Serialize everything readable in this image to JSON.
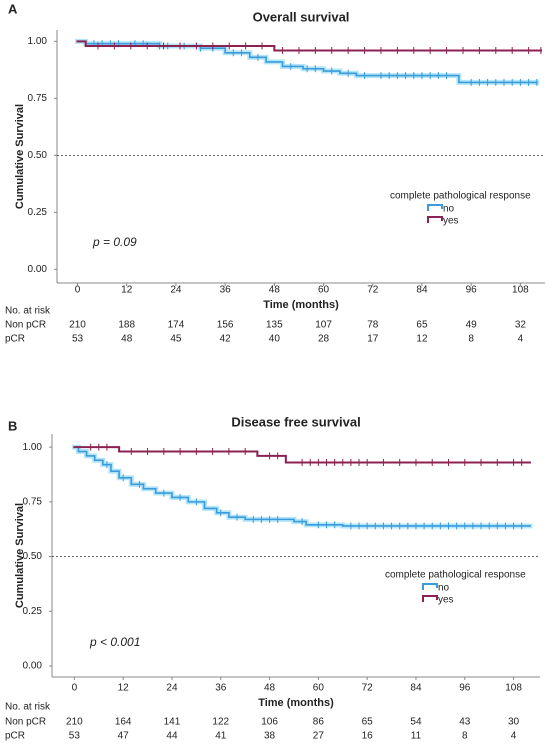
{
  "chart_data": [
    {
      "type": "line",
      "panel": "A",
      "title": "Overall survival",
      "xlabel": "Time (months)",
      "ylabel": "Cumulative Survival",
      "xlim": [
        -5,
        114
      ],
      "ylim": [
        -0.06,
        1.05
      ],
      "xticks": [
        0,
        12,
        24,
        36,
        48,
        60,
        72,
        84,
        96,
        108
      ],
      "yticks": [
        {
          "value": 0,
          "label": "0.00"
        },
        {
          "value": 0.25,
          "label": "0.25"
        },
        {
          "value": 0.5,
          "label": "0.50"
        },
        {
          "value": 0.75,
          "label": "0.75"
        },
        {
          "value": 1,
          "label": "1.00"
        }
      ],
      "hline": 0.5,
      "annotation": "p = 0.09",
      "legend_title": "complete pathological response",
      "series": [
        {
          "name": "no",
          "color": "#3b9bdc",
          "x": [
            0,
            2,
            20,
            30,
            36,
            42,
            46,
            50,
            55,
            60,
            64,
            68,
            93,
            112
          ],
          "values": [
            1.0,
            0.99,
            0.98,
            0.97,
            0.95,
            0.93,
            0.91,
            0.89,
            0.88,
            0.87,
            0.86,
            0.85,
            0.82,
            0.82
          ],
          "censor_x": [
            4,
            6,
            8,
            10,
            14,
            16,
            20,
            22,
            26,
            30,
            33,
            38,
            40,
            44,
            52,
            56,
            58,
            62,
            66,
            70,
            74,
            76,
            78,
            80,
            82,
            84,
            86,
            88,
            90,
            96,
            98,
            100,
            102,
            104,
            106,
            108,
            110,
            112
          ]
        },
        {
          "name": "yes",
          "color": "#8b2252",
          "x": [
            0,
            2,
            48,
            113
          ],
          "values": [
            1.0,
            0.98,
            0.96,
            0.96
          ],
          "censor_x": [
            5,
            9,
            13,
            17,
            21,
            25,
            29,
            33,
            37,
            41,
            45,
            50,
            54,
            58,
            62,
            66,
            70,
            74,
            78,
            82,
            86,
            90,
            94,
            98,
            102,
            106,
            110,
            113
          ]
        }
      ],
      "risk_table": {
        "title": "No. at risk",
        "rows": [
          {
            "name": "Non pCR",
            "values": [
              210,
              188,
              174,
              156,
              135,
              107,
              78,
              65,
              49,
              32
            ]
          },
          {
            "name": "pCR",
            "values": [
              53,
              48,
              45,
              42,
              40,
              28,
              17,
              12,
              8,
              4
            ]
          }
        ]
      }
    },
    {
      "type": "line",
      "panel": "B",
      "title": "Disease free survival",
      "xlabel": "Time (months)",
      "ylabel": "Cumulative Survival",
      "xlim": [
        -5.5,
        114.5
      ],
      "ylim": [
        -0.05,
        1.06
      ],
      "xticks": [
        0,
        12,
        24,
        36,
        48,
        60,
        72,
        84,
        96,
        108
      ],
      "yticks": [
        {
          "value": 0,
          "label": "0.00"
        },
        {
          "value": 0.25,
          "label": "0.25"
        },
        {
          "value": 0.5,
          "label": "0.50"
        },
        {
          "value": 0.75,
          "label": "0.75"
        },
        {
          "value": 1,
          "label": "1.00"
        }
      ],
      "hline": 0.5,
      "annotation": "p < 0.001",
      "legend_title": "complete pathological response",
      "series": [
        {
          "name": "no",
          "color": "#3b9bdc",
          "x": [
            0,
            1,
            3,
            5,
            7,
            9,
            11,
            14,
            17,
            20,
            24,
            28,
            32,
            35,
            38,
            42,
            54,
            57,
            66,
            112
          ],
          "values": [
            1.0,
            0.98,
            0.96,
            0.94,
            0.92,
            0.89,
            0.86,
            0.83,
            0.81,
            0.79,
            0.77,
            0.75,
            0.72,
            0.7,
            0.68,
            0.67,
            0.66,
            0.645,
            0.64,
            0.64
          ],
          "censor_x": [
            8,
            12,
            16,
            22,
            26,
            30,
            36,
            40,
            44,
            46,
            48,
            50,
            56,
            60,
            62,
            64,
            68,
            70,
            72,
            74,
            76,
            78,
            80,
            82,
            84,
            86,
            88,
            90,
            92,
            94,
            96,
            98,
            100,
            102,
            104,
            106,
            108,
            110
          ]
        },
        {
          "name": "yes",
          "color": "#8b2252",
          "x": [
            0,
            11,
            45,
            52,
            112
          ],
          "values": [
            1.0,
            0.98,
            0.96,
            0.93,
            0.93
          ],
          "censor_x": [
            4,
            6,
            8,
            14,
            18,
            22,
            26,
            30,
            34,
            38,
            42,
            48,
            50,
            56,
            58,
            60,
            62,
            64,
            66,
            68,
            70,
            72,
            76,
            80,
            84,
            88,
            92,
            96,
            100,
            104,
            108,
            110
          ]
        }
      ],
      "risk_table": {
        "title": "No. at risk",
        "rows": [
          {
            "name": "Non pCR",
            "values": [
              210,
              164,
              141,
              122,
              106,
              86,
              65,
              54,
              43,
              30
            ]
          },
          {
            "name": "pCR",
            "values": [
              53,
              47,
              44,
              41,
              38,
              27,
              16,
              11,
              8,
              4
            ]
          }
        ]
      }
    }
  ]
}
